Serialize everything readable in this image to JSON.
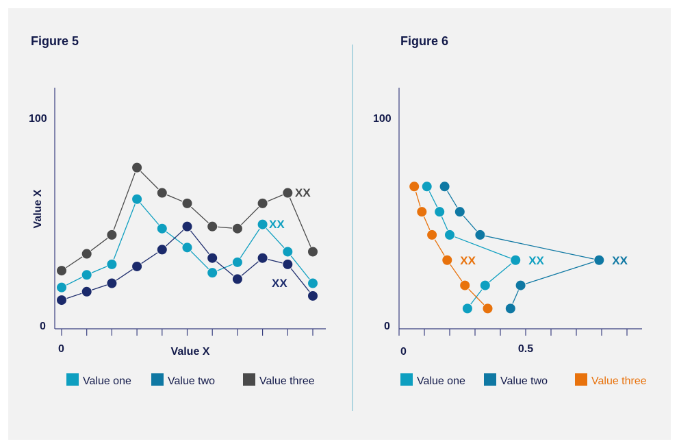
{
  "chart_data": [
    {
      "type": "line",
      "title": "Figure 5",
      "xlabel": "Value X",
      "ylabel": "Value X",
      "ylim": [
        0,
        100
      ],
      "y_tick_labels": [
        "0",
        "100"
      ],
      "x_tick_labels": [
        "0"
      ],
      "x": [
        0,
        1,
        2,
        3,
        4,
        5,
        6,
        7,
        8,
        9,
        10
      ],
      "grid": false,
      "legend_position": "bottom",
      "series": [
        {
          "name": "Value one",
          "color": "#0e9fc0",
          "values": [
            19,
            25,
            30,
            61,
            47,
            38,
            26,
            31,
            49,
            36,
            21
          ],
          "end_label": "XX",
          "label_index": 8
        },
        {
          "name": "Value two",
          "color": "#1b2a6b",
          "legend_color": "#0f78a3",
          "values": [
            13,
            17,
            21,
            29,
            37,
            48,
            33,
            23,
            33,
            30,
            15
          ],
          "end_label": "XX",
          "label_index": 9
        },
        {
          "name": "Value three",
          "color": "#4a4a4a",
          "values": [
            27,
            35,
            44,
            76,
            64,
            59,
            48,
            47,
            59,
            64,
            36
          ],
          "end_label": "XX",
          "label_index": 9
        }
      ]
    },
    {
      "type": "line",
      "title": "Figure 6",
      "xlabel": "",
      "ylabel": "",
      "ylim": [
        0,
        100
      ],
      "xlim": [
        0,
        0.95
      ],
      "y_tick_labels": [
        "0",
        "100"
      ],
      "x_tick_labels": [
        "0",
        "0.5"
      ],
      "grid": false,
      "legend_position": "bottom",
      "y": [
        67,
        55,
        44,
        32,
        20,
        9
      ],
      "series": [
        {
          "name": "Value one",
          "color": "#0e9fc0",
          "x": [
            0.11,
            0.16,
            0.2,
            0.46,
            0.34,
            0.27
          ],
          "end_label": "XX"
        },
        {
          "name": "Value two",
          "color": "#0f78a3",
          "x": [
            0.18,
            0.24,
            0.32,
            0.79,
            0.48,
            0.44
          ],
          "end_label": "XX"
        },
        {
          "name": "Value three",
          "color": "#e8720c",
          "x": [
            0.06,
            0.09,
            0.13,
            0.19,
            0.26,
            0.35
          ],
          "end_label": "XX"
        }
      ]
    }
  ]
}
